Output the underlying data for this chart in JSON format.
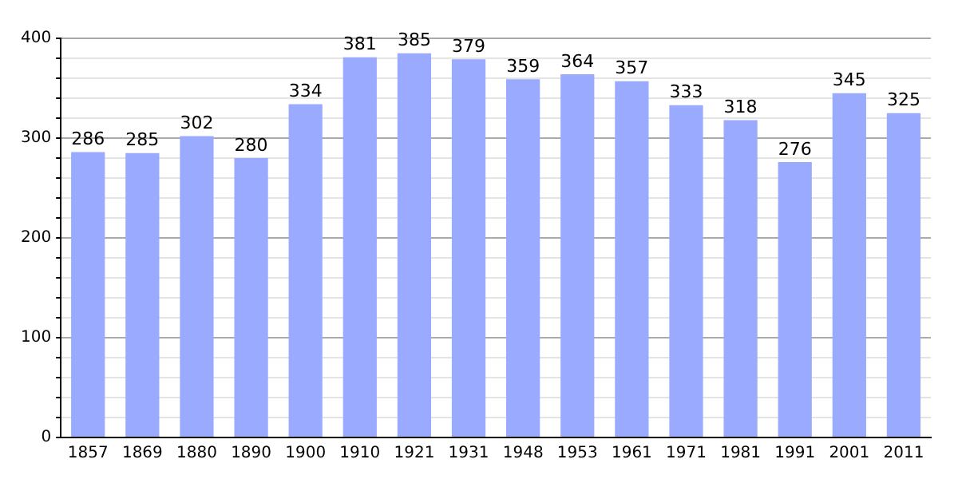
{
  "chart_data": {
    "type": "bar",
    "categories": [
      "1857",
      "1869",
      "1880",
      "1890",
      "1900",
      "1910",
      "1921",
      "1931",
      "1948",
      "1953",
      "1961",
      "1971",
      "1981",
      "1991",
      "2001",
      "2011"
    ],
    "values": [
      286,
      285,
      302,
      280,
      334,
      381,
      385,
      379,
      359,
      364,
      357,
      333,
      318,
      276,
      345,
      325
    ],
    "color": "#99aaff",
    "ylim": [
      0,
      400
    ],
    "yticks": [
      0,
      {
        "value": 20,
        "label": null
      },
      {
        "value": 40,
        "label": null
      },
      {
        "value": 60,
        "label": null
      },
      {
        "value": 80,
        "label": null
      },
      100,
      {
        "value": 120,
        "label": null
      },
      {
        "value": 140,
        "label": null
      },
      {
        "value": 160,
        "label": null
      },
      {
        "value": 180,
        "label": null
      },
      200,
      {
        "value": 220,
        "label": null
      },
      {
        "value": 240,
        "label": null
      },
      {
        "value": 260,
        "label": null
      },
      {
        "value": 280,
        "label": null
      },
      300,
      {
        "value": 320,
        "label": null
      },
      {
        "value": 340,
        "label": null
      },
      {
        "value": 360,
        "label": null
      },
      {
        "value": 380,
        "label": null
      },
      400
    ],
    "grid": "y",
    "data_labels": true
  }
}
